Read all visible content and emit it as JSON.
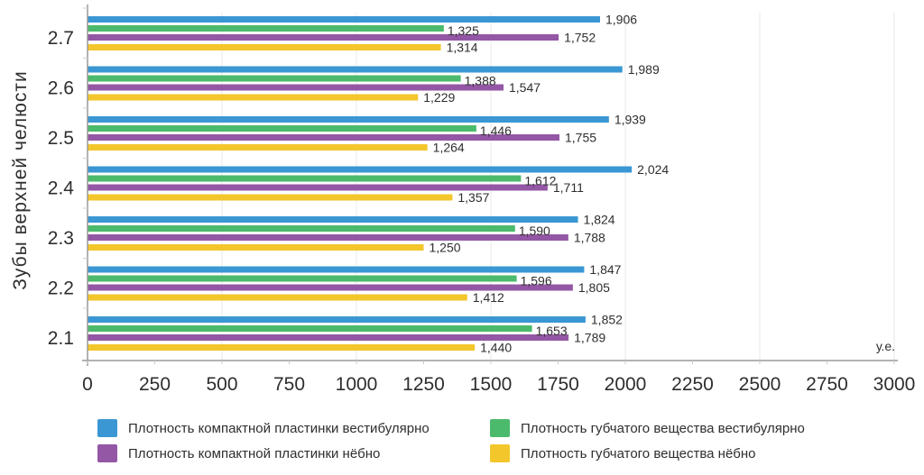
{
  "chart_data": {
    "type": "bar",
    "orientation": "horizontal",
    "title": "",
    "ylabel": "Зубы верхней челюсти",
    "xlabel": "у.е.",
    "xlim": [
      0,
      3000
    ],
    "xticks": [
      "0",
      "250",
      "500",
      "750",
      "1000",
      "1250",
      "1500",
      "1750",
      "2000",
      "2250",
      "2500",
      "2750",
      "3000"
    ],
    "grid": "vertical every 500",
    "categories": [
      "2.7",
      "2.6",
      "2.5",
      "2.4",
      "2.3",
      "2.2",
      "2.1"
    ],
    "series": [
      {
        "name": "Плотность компактной пластинки вестибулярно",
        "color": "#3a97d4",
        "values": [
          1906,
          1989,
          1939,
          2024,
          1824,
          1847,
          1852
        ],
        "labels": [
          "1,906",
          "1,989",
          "1,939",
          "2,024",
          "1,824",
          "1,847",
          "1,852"
        ]
      },
      {
        "name": "Плотность губчатого вещества вестибулярно",
        "color": "#4cba6c",
        "values": [
          1325,
          1388,
          1446,
          1612,
          1590,
          1596,
          1653
        ],
        "labels": [
          "1,325",
          "1,388",
          "1,446",
          "1,612",
          "1,590",
          "1,596",
          "1,653"
        ]
      },
      {
        "name": "Плотность компактной пластинки нёбно",
        "color": "#9457a5",
        "values": [
          1752,
          1547,
          1755,
          1711,
          1788,
          1805,
          1789
        ],
        "labels": [
          "1,752",
          "1,547",
          "1,755",
          "1,711",
          "1,788",
          "1,805",
          "1,789"
        ]
      },
      {
        "name": "Плотность губчатого вещества нёбно",
        "color": "#f3c62b",
        "values": [
          1314,
          1229,
          1264,
          1357,
          1250,
          1412,
          1440
        ],
        "labels": [
          "1,314",
          "1,229",
          "1,264",
          "1,357",
          "1,250",
          "1,412",
          "1,440"
        ]
      }
    ],
    "legend": {
      "placement": "bottom",
      "order": [
        0,
        2,
        1,
        3
      ]
    }
  }
}
